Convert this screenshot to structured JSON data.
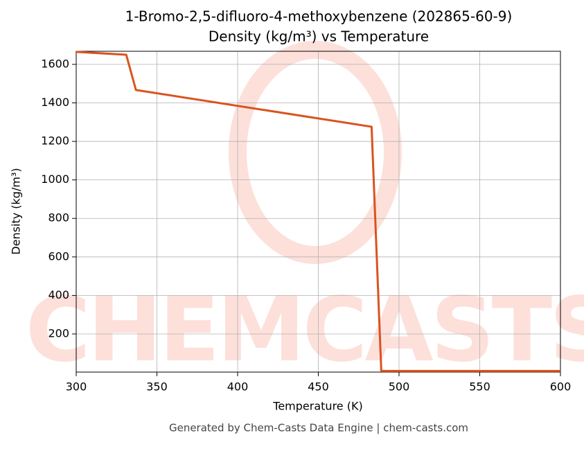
{
  "chart_data": {
    "type": "line",
    "title": "1-Bromo-2,5-difluoro-4-methoxybenzene (202865-60-9)",
    "subtitle": "Density (kg/m³) vs Temperature",
    "x_label": "Temperature (K)",
    "y_label": "Density (kg/m³)",
    "watermark": "CHEMCASTS",
    "footer": "Generated by Chem-Casts Data Engine | chem-casts.com",
    "x": [
      300,
      331,
      337,
      483,
      489,
      600
    ],
    "series": [
      {
        "name": "Density",
        "color": "#d9531e",
        "values": [
          1665,
          1650,
          1467,
          1276,
          8,
          8
        ]
      }
    ],
    "xlim": [
      300,
      600
    ],
    "ylim": [
      2,
      1668
    ],
    "xticks": [
      300,
      350,
      400,
      450,
      500,
      550,
      600
    ],
    "yticks": [
      200,
      400,
      600,
      800,
      1000,
      1200,
      1400,
      1600
    ],
    "grid": true
  }
}
